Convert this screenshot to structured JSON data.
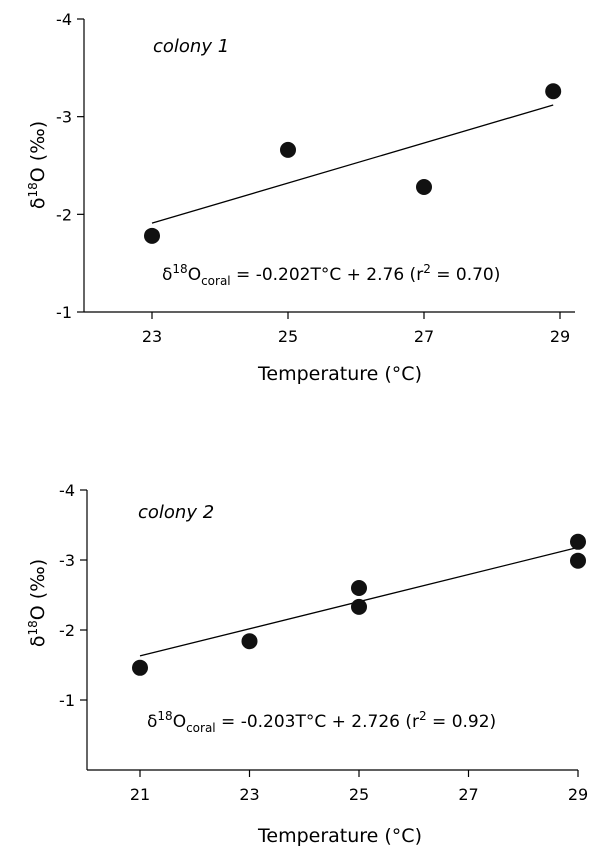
{
  "chart_data": [
    {
      "type": "scatter",
      "panel_label": "colony 1",
      "xlabel": "Temperature (°C)",
      "ylabel": {
        "main": "δ",
        "sup": "18",
        "rest": "O (‰)"
      },
      "xlim": [
        21.5,
        29.3
      ],
      "ylim": [
        -1,
        -4
      ],
      "x_ticks": [
        23,
        25,
        27,
        29
      ],
      "x_tick_labels": [
        "23",
        "25",
        "27",
        "29"
      ],
      "y_ticks": [
        -1,
        -2,
        -3,
        -4
      ],
      "y_tick_labels": [
        "-1",
        "-2",
        "-3",
        "-4"
      ],
      "points": [
        {
          "x": 23.0,
          "y": -1.78
        },
        {
          "x": 25.0,
          "y": -2.66
        },
        {
          "x": 27.0,
          "y": -2.28
        },
        {
          "x": 28.9,
          "y": -3.26
        }
      ],
      "fit_line": {
        "x": [
          23.0,
          28.9
        ],
        "y": [
          -1.91,
          -3.12
        ]
      },
      "equation": {
        "a": "δ",
        "a_sup": "18",
        "b": "O",
        "b_sub": "coral",
        "c": " = -0.202T°C + 2.76 (r",
        "c_sup": "2",
        "d": " = 0.70)"
      },
      "grid": false
    },
    {
      "type": "scatter",
      "panel_label": "colony 2",
      "xlabel": "Temperature (°C)",
      "ylabel": {
        "main": "δ",
        "sup": "18",
        "rest": "O (‰)"
      },
      "xlim": [
        20.5,
        29.3
      ],
      "ylim": [
        0,
        -4
      ],
      "x_ticks": [
        21,
        23,
        25,
        27,
        29
      ],
      "x_tick_labels": [
        "21",
        "23",
        "25",
        "27",
        "29"
      ],
      "y_ticks": [
        -1,
        -2,
        -3,
        -4
      ],
      "y_tick_labels": [
        "-1",
        "-2",
        "-3",
        "-4"
      ],
      "points": [
        {
          "x": 21.0,
          "y": -1.46
        },
        {
          "x": 23.0,
          "y": -1.84
        },
        {
          "x": 25.0,
          "y": -2.6
        },
        {
          "x": 25.0,
          "y": -2.33
        },
        {
          "x": 29.0,
          "y": -3.26
        },
        {
          "x": 29.0,
          "y": -2.99
        }
      ],
      "fit_line": {
        "x": [
          21.0,
          29.0
        ],
        "y": [
          -1.63,
          -3.18
        ]
      },
      "equation": {
        "a": "δ",
        "a_sup": "18",
        "b": "O",
        "b_sub": "coral",
        "c": " = -0.203T°C + 2.726 (r",
        "c_sup": "2",
        "d": " = 0.92)"
      },
      "grid": false
    }
  ]
}
